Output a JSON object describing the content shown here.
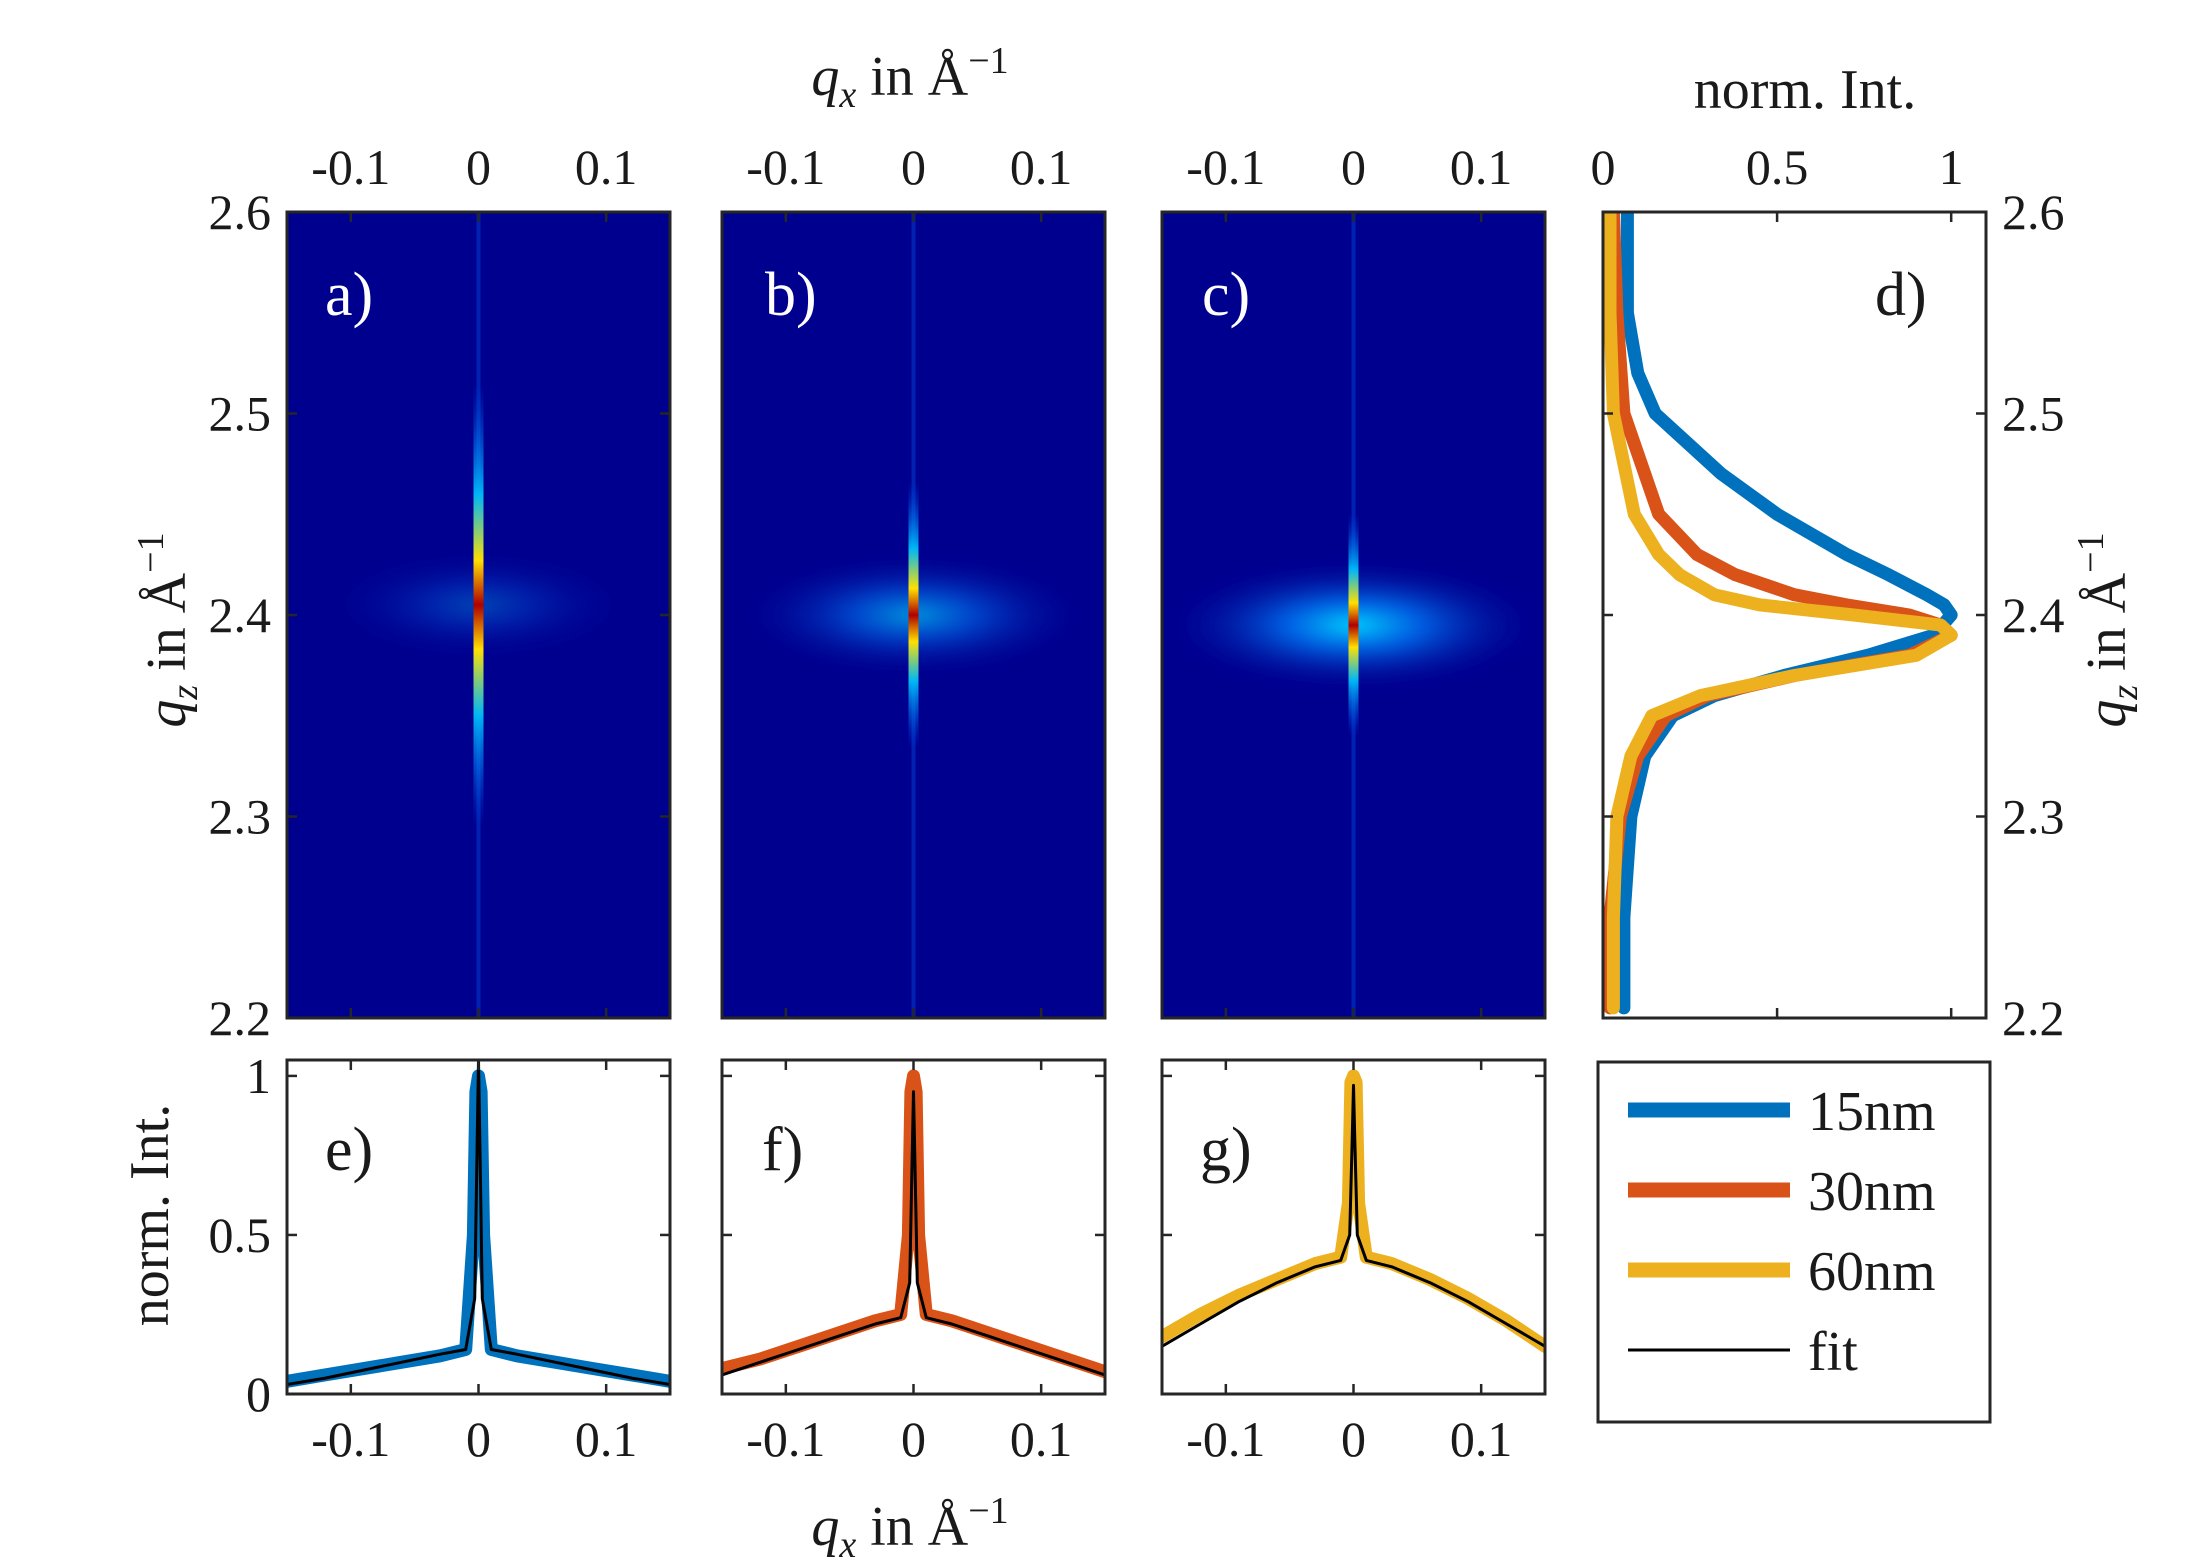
{
  "figure": {
    "qx_label_top": "q_x in Å^-1",
    "qx_label_bottom": "q_x in Å^-1",
    "qz_label_left": "q_z in Å^-1",
    "qz_label_right": "q_z in Å^-1",
    "norm_label_top": "norm. Int.",
    "norm_label_left": "norm. Int."
  },
  "colors": {
    "15nm": "#0072bd",
    "30nm": "#d95319",
    "60nm": "#edb120",
    "fit": "#000000",
    "map_background": "#00008f"
  },
  "panel_labels": [
    "a)",
    "b)",
    "c)",
    "d)",
    "e)",
    "f)",
    "g)"
  ],
  "legend": [
    {
      "label": "15nm",
      "color_key": "15nm",
      "thick": true
    },
    {
      "label": "30nm",
      "color_key": "30nm",
      "thick": true
    },
    {
      "label": "60nm",
      "color_key": "60nm",
      "thick": true
    },
    {
      "label": "fit",
      "color_key": "fit",
      "thick": false
    }
  ],
  "chart_data": [
    {
      "type": "heatmap",
      "panel": "a)",
      "colormap": "jet",
      "xlabel": "q_x in Å^-1",
      "ylabel": "q_z in Å^-1",
      "xlim": [
        -0.15,
        0.15
      ],
      "ylim": [
        2.2,
        2.6
      ],
      "xticks": [
        "-0.1",
        "0",
        "0.1"
      ],
      "yticks": [
        "2.2",
        "2.3",
        "2.4",
        "2.5",
        "2.6"
      ],
      "peak_center": [
        0,
        2.405
      ],
      "diffuse_halo_intensity": 0.15,
      "streak_halfwidth_qz": 0.05
    },
    {
      "type": "heatmap",
      "panel": "b)",
      "colormap": "jet",
      "xlabel": "q_x in Å^-1",
      "xlim": [
        -0.15,
        0.15
      ],
      "ylim": [
        2.2,
        2.6
      ],
      "xticks": [
        "-0.1",
        "0",
        "0.1"
      ],
      "peak_center": [
        0,
        2.4
      ],
      "diffuse_halo_intensity": 0.32,
      "streak_halfwidth_qz": 0.03
    },
    {
      "type": "heatmap",
      "panel": "c)",
      "colormap": "jet",
      "xlabel": "q_x in Å^-1",
      "xlim": [
        -0.15,
        0.15
      ],
      "ylim": [
        2.2,
        2.6
      ],
      "xticks": [
        "-0.1",
        "0",
        "0.1"
      ],
      "peak_center": [
        0,
        2.395
      ],
      "diffuse_halo_intensity": 0.45,
      "streak_halfwidth_qz": 0.025
    },
    {
      "type": "line",
      "panel": "d)",
      "xlabel": "norm. Int.",
      "ylabel": "q_z in Å^-1",
      "xlim": [
        0,
        1.1
      ],
      "ylim": [
        2.2,
        2.6
      ],
      "xticks": [
        "0",
        "0.5",
        "1"
      ],
      "yticks": [
        "2.2",
        "2.3",
        "2.4",
        "2.5",
        "2.6"
      ],
      "series": [
        {
          "name": "15nm",
          "color_key": "15nm",
          "y": [
            2.205,
            2.25,
            2.3,
            2.33,
            2.35,
            2.36,
            2.37,
            2.38,
            2.39,
            2.4,
            2.405,
            2.41,
            2.42,
            2.43,
            2.45,
            2.47,
            2.5,
            2.52,
            2.55,
            2.6
          ],
          "x": [
            0.06,
            0.06,
            0.08,
            0.12,
            0.2,
            0.32,
            0.52,
            0.76,
            0.95,
            1.0,
            0.98,
            0.93,
            0.82,
            0.7,
            0.5,
            0.34,
            0.15,
            0.1,
            0.07,
            0.07
          ]
        },
        {
          "name": "30nm",
          "color_key": "30nm",
          "y": [
            2.205,
            2.25,
            2.3,
            2.33,
            2.35,
            2.36,
            2.37,
            2.38,
            2.39,
            2.395,
            2.4,
            2.405,
            2.41,
            2.42,
            2.43,
            2.45,
            2.5,
            2.55,
            2.6
          ],
          "x": [
            0.02,
            0.02,
            0.05,
            0.1,
            0.18,
            0.3,
            0.55,
            0.88,
            1.0,
            0.97,
            0.88,
            0.7,
            0.55,
            0.38,
            0.27,
            0.16,
            0.06,
            0.04,
            0.03
          ]
        },
        {
          "name": "60nm",
          "color_key": "60nm",
          "y": [
            2.205,
            2.25,
            2.3,
            2.33,
            2.35,
            2.36,
            2.37,
            2.38,
            2.39,
            2.395,
            2.4,
            2.405,
            2.41,
            2.42,
            2.43,
            2.45,
            2.5,
            2.55,
            2.6
          ],
          "x": [
            0.03,
            0.03,
            0.04,
            0.08,
            0.14,
            0.28,
            0.55,
            0.9,
            1.0,
            0.97,
            0.72,
            0.45,
            0.32,
            0.22,
            0.16,
            0.09,
            0.03,
            0.02,
            0.02
          ]
        }
      ]
    },
    {
      "type": "line",
      "panel": "e)",
      "xlabel": "",
      "ylabel": "norm. Int.",
      "xlim": [
        -0.15,
        0.15
      ],
      "ylim": [
        0,
        1.05
      ],
      "xticks": [
        "-0.1",
        "0",
        "0.1"
      ],
      "yticks": [
        "0",
        "0.5",
        "1"
      ],
      "series": [
        {
          "name": "15nm",
          "color_key": "15nm",
          "x": [
            -0.15,
            -0.12,
            -0.09,
            -0.06,
            -0.03,
            -0.01,
            -0.004,
            -0.002,
            0,
            0.002,
            0.004,
            0.01,
            0.03,
            0.06,
            0.09,
            0.12,
            0.15
          ],
          "y": [
            0.04,
            0.06,
            0.08,
            0.1,
            0.12,
            0.14,
            0.5,
            0.95,
            1.0,
            0.95,
            0.5,
            0.14,
            0.12,
            0.1,
            0.08,
            0.06,
            0.04
          ]
        },
        {
          "name": "fit",
          "color_key": "fit",
          "x": [
            -0.15,
            -0.12,
            -0.09,
            -0.06,
            -0.03,
            -0.01,
            -0.003,
            -0.001,
            0,
            0.001,
            0.003,
            0.01,
            0.03,
            0.06,
            0.09,
            0.12,
            0.15
          ],
          "y": [
            0.03,
            0.05,
            0.075,
            0.1,
            0.125,
            0.14,
            0.3,
            0.8,
            1.05,
            0.8,
            0.3,
            0.14,
            0.125,
            0.1,
            0.075,
            0.05,
            0.03
          ]
        }
      ]
    },
    {
      "type": "line",
      "panel": "f)",
      "xlabel": "q_x in Å^-1",
      "xlim": [
        -0.15,
        0.15
      ],
      "ylim": [
        0,
        1.05
      ],
      "xticks": [
        "-0.1",
        "0",
        "0.1"
      ],
      "series": [
        {
          "name": "30nm",
          "color_key": "30nm",
          "x": [
            -0.15,
            -0.12,
            -0.09,
            -0.06,
            -0.03,
            -0.01,
            -0.004,
            -0.002,
            0,
            0.002,
            0.004,
            0.01,
            0.03,
            0.06,
            0.09,
            0.12,
            0.15
          ],
          "y": [
            0.08,
            0.11,
            0.15,
            0.19,
            0.23,
            0.25,
            0.5,
            0.95,
            1.0,
            0.95,
            0.5,
            0.25,
            0.23,
            0.19,
            0.15,
            0.11,
            0.07
          ]
        },
        {
          "name": "fit",
          "color_key": "fit",
          "x": [
            -0.15,
            -0.12,
            -0.09,
            -0.06,
            -0.03,
            -0.01,
            -0.003,
            -0.001,
            0,
            0.001,
            0.003,
            0.01,
            0.03,
            0.06,
            0.09,
            0.12,
            0.15
          ],
          "y": [
            0.06,
            0.1,
            0.14,
            0.18,
            0.22,
            0.24,
            0.35,
            0.75,
            0.95,
            0.75,
            0.35,
            0.24,
            0.22,
            0.18,
            0.14,
            0.1,
            0.06
          ]
        }
      ]
    },
    {
      "type": "line",
      "panel": "g)",
      "xlabel": "",
      "xlim": [
        -0.15,
        0.15
      ],
      "ylim": [
        0,
        1.05
      ],
      "xticks": [
        "-0.1",
        "0",
        "0.1"
      ],
      "series": [
        {
          "name": "60nm",
          "color_key": "60nm",
          "x": [
            -0.15,
            -0.12,
            -0.09,
            -0.06,
            -0.03,
            -0.01,
            -0.004,
            -0.002,
            0,
            0.002,
            0.004,
            0.01,
            0.03,
            0.06,
            0.09,
            0.12,
            0.15
          ],
          "y": [
            0.18,
            0.25,
            0.31,
            0.36,
            0.41,
            0.43,
            0.6,
            0.98,
            1.0,
            0.98,
            0.6,
            0.43,
            0.41,
            0.36,
            0.3,
            0.23,
            0.15
          ]
        },
        {
          "name": "fit",
          "color_key": "fit",
          "x": [
            -0.15,
            -0.12,
            -0.09,
            -0.06,
            -0.03,
            -0.01,
            -0.003,
            -0.001,
            0,
            0.001,
            0.003,
            0.01,
            0.03,
            0.06,
            0.09,
            0.12,
            0.15
          ],
          "y": [
            0.15,
            0.22,
            0.29,
            0.35,
            0.4,
            0.42,
            0.5,
            0.8,
            0.97,
            0.8,
            0.5,
            0.42,
            0.4,
            0.35,
            0.29,
            0.22,
            0.15
          ]
        }
      ]
    }
  ]
}
